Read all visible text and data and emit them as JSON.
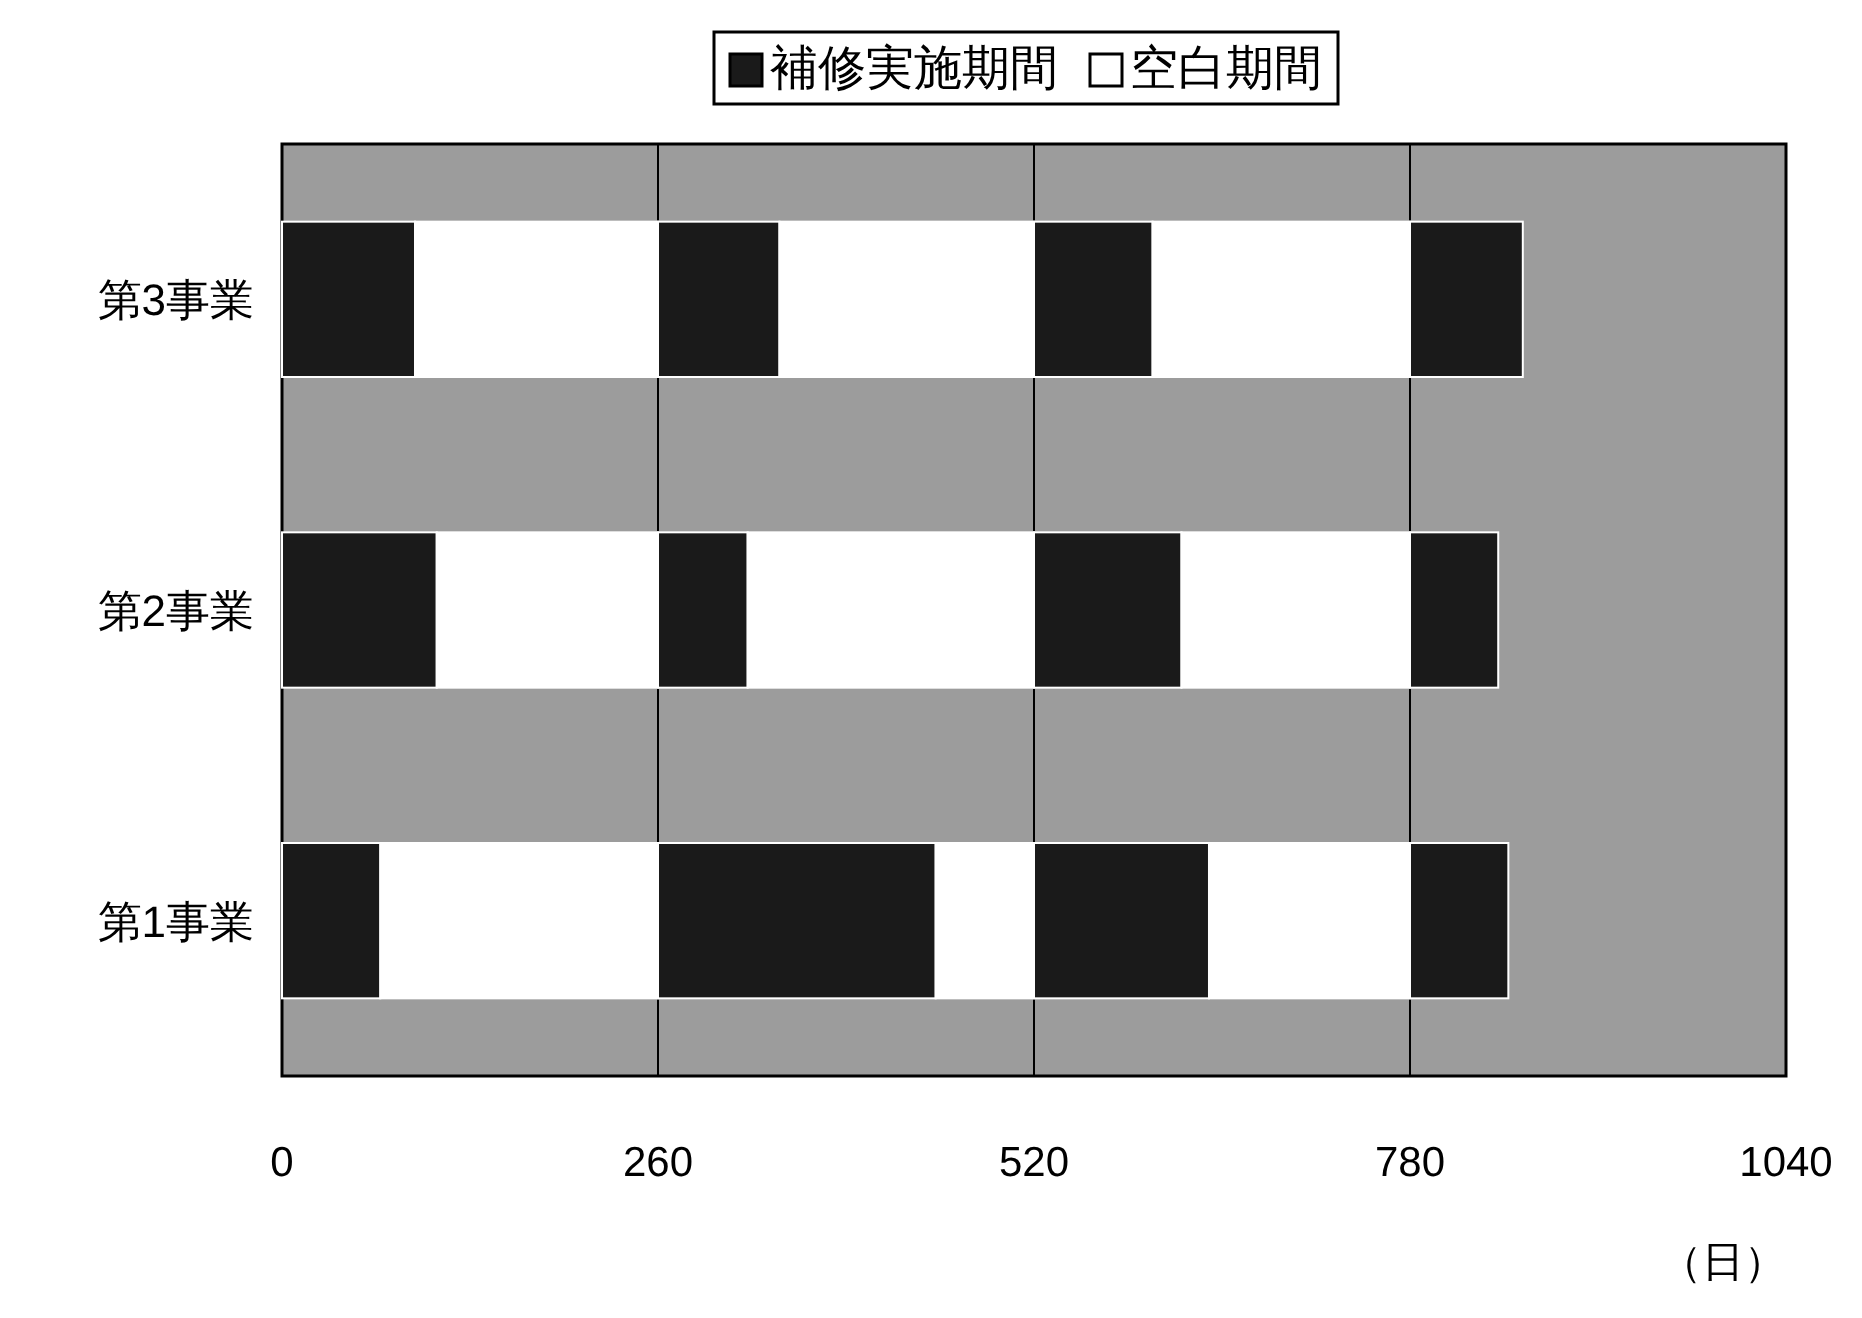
{
  "chart_data": {
    "type": "bar",
    "orientation": "horizontal",
    "stacked": true,
    "categories": [
      "第3事業",
      "第2事業",
      "第1事業"
    ],
    "xlabel": "（日）",
    "xlim": [
      0,
      1040
    ],
    "xticks": [
      0,
      260,
      520,
      780,
      1040
    ],
    "grid": "x",
    "legend": "top",
    "series": [
      {
        "name": "補修実施期間",
        "color": "#1a1a1a",
        "values": [
          92,
          107,
          68
        ]
      },
      {
        "name": "空白期間",
        "color": "#ffffff",
        "values": [
          168,
          153,
          192
        ]
      },
      {
        "color": "#1a1a1a",
        "values": [
          84,
          62,
          192
        ]
      },
      {
        "color": "#ffffff",
        "values": [
          176,
          198,
          68
        ]
      },
      {
        "color": "#1a1a1a",
        "values": [
          82,
          102,
          121
        ]
      },
      {
        "color": "#ffffff",
        "values": [
          178,
          158,
          139
        ]
      },
      {
        "color": "#1a1a1a",
        "values": [
          78,
          61,
          68
        ]
      }
    ]
  }
}
